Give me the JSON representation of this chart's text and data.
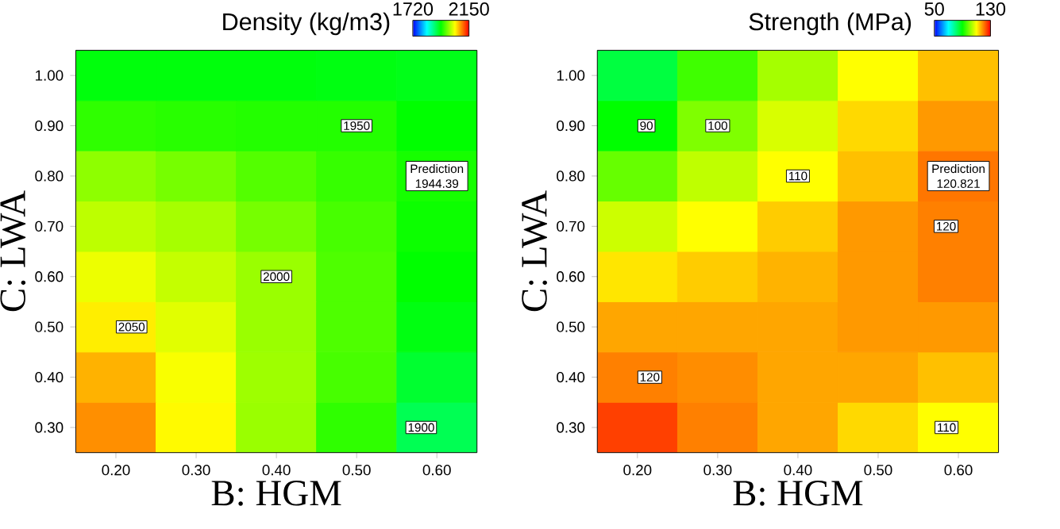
{
  "chart_data": [
    {
      "type": "heatmap",
      "clabel": "Density (kg/m3)",
      "xlabel": "B: HGM",
      "ylabel": "C: LWA",
      "categories": [
        "0.20",
        "0.30",
        "0.40",
        "0.50",
        "0.60"
      ],
      "y_categories": [
        "1.00",
        "0.90",
        "0.80",
        "0.70",
        "0.60",
        "0.50",
        "0.40",
        "0.30"
      ],
      "cells": [
        [
          1930,
          1930,
          1930,
          1928,
          1925
        ],
        [
          1955,
          1952,
          1950,
          1950,
          1935
        ],
        [
          1995,
          1985,
          1970,
          1958,
          1944.39
        ],
        [
          2015,
          2005,
          1985,
          1965,
          1940
        ],
        [
          2035,
          2018,
          2000,
          1968,
          1935
        ],
        [
          2050,
          2030,
          2000,
          1968,
          1928
        ],
        [
          2075,
          2040,
          2002,
          1965,
          1915
        ],
        [
          2090,
          2045,
          2000,
          1955,
          1900
        ]
      ],
      "cell_labels": [
        [
          null,
          null,
          null,
          null,
          null
        ],
        [
          null,
          null,
          null,
          "1950",
          null
        ],
        [
          null,
          null,
          null,
          null,
          "Prediction 1944.39"
        ],
        [
          null,
          null,
          null,
          null,
          null
        ],
        [
          null,
          null,
          "2000",
          null,
          null
        ],
        [
          "2050",
          null,
          null,
          null,
          null
        ],
        [
          null,
          null,
          null,
          null,
          null
        ],
        [
          null,
          null,
          null,
          null,
          "1900"
        ]
      ],
      "clim": [
        1720,
        2150
      ],
      "cticks": [
        1720,
        2150
      ]
    },
    {
      "type": "heatmap",
      "clabel": "Strength (MPa)",
      "xlabel": "B: HGM",
      "ylabel": "C: LWA",
      "categories": [
        "0.20",
        "0.30",
        "0.40",
        "0.50",
        "0.60"
      ],
      "y_categories": [
        "1.00",
        "0.90",
        "0.80",
        "0.70",
        "0.60",
        "0.50",
        "0.40",
        "0.30"
      ],
      "cells": [
        [
          85,
          95,
          103,
          110,
          115
        ],
        [
          90,
          100,
          107,
          113,
          118
        ],
        [
          98,
          105,
          110,
          115,
          120.821
        ],
        [
          106,
          110,
          114,
          118,
          120
        ],
        [
          112,
          114,
          116,
          118,
          120
        ],
        [
          117,
          117,
          117,
          118,
          118
        ],
        [
          120,
          119,
          117,
          117,
          115
        ],
        [
          125,
          120,
          117,
          113,
          110
        ]
      ],
      "cell_labels": [
        [
          null,
          null,
          null,
          null,
          null
        ],
        [
          "90",
          "100",
          null,
          null,
          null
        ],
        [
          null,
          null,
          "110",
          null,
          "Prediction 120.821"
        ],
        [
          null,
          null,
          null,
          null,
          "120"
        ],
        [
          null,
          null,
          null,
          null,
          null
        ],
        [
          null,
          null,
          null,
          null,
          null
        ],
        [
          "120",
          null,
          null,
          null,
          null
        ],
        [
          null,
          null,
          null,
          null,
          "110"
        ]
      ],
      "clim": [
        50,
        130
      ],
      "cticks": [
        50,
        130
      ]
    }
  ]
}
